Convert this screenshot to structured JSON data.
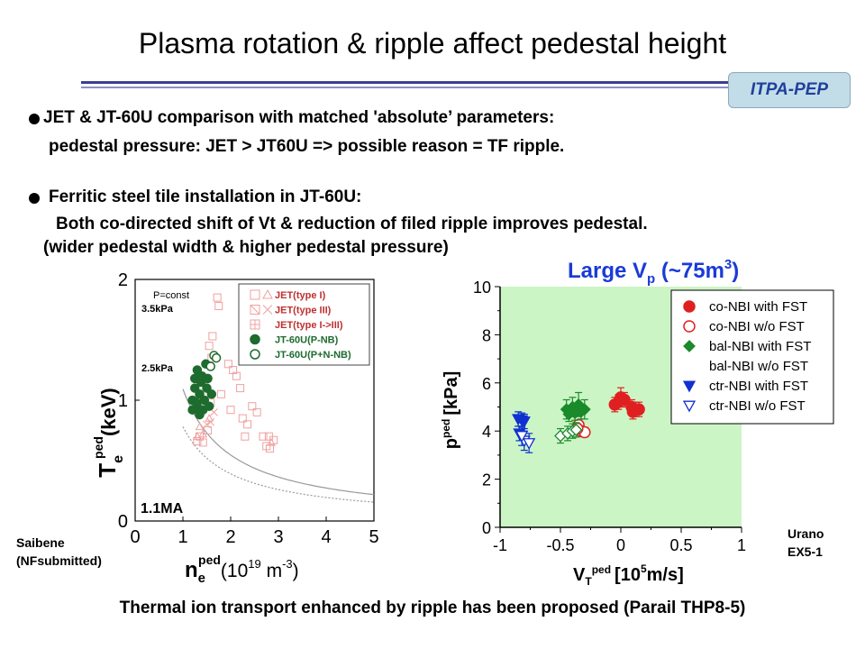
{
  "title": "Plasma rotation & ripple affect pedestal height",
  "badge": "ITPA-PEP",
  "bullets": [
    {
      "line1": "JET & JT-60U comparison with matched 'absolute’ parameters:",
      "line2": "pedestal pressure: JET > JT60U  => possible reason = TF ripple."
    },
    {
      "line1": "Ferritic steel tile installation in JT-60U:",
      "line2": "Both co-directed shift of Vt & reduction of filed ripple improves pedestal.",
      "line3": "(wider pedestal width & higher pedestal pressure)"
    }
  ],
  "footer": "Thermal ion transport enhanced by ripple has been proposed (Parail THP8-5)",
  "credits": {
    "left": "Saibene\n(NFsubmitted)",
    "right": "Urano\nEX5-1"
  },
  "colors": {
    "jet": "#f0a0a0",
    "jt60u": "#1e6b2e",
    "red": "#e02020",
    "blue": "#1030d0",
    "green": "#1a8a2a",
    "plot_bg": "#ccf5c6"
  },
  "chart_data": [
    {
      "type": "scatter",
      "xlabel": {
        "main": "n",
        "sub": "e",
        "sup": "ped",
        "rest": "(10",
        "exp": "19",
        "unit": " m",
        "unitexp": "-3",
        "close": ")"
      },
      "ylabel": {
        "main": "T",
        "sub": "e",
        "sup": "ped",
        "rest": "(keV)"
      },
      "xlim": [
        0,
        5
      ],
      "ylim": [
        0,
        2
      ],
      "x_ticks": [
        "0",
        "1",
        "2",
        "3",
        "4",
        "5"
      ],
      "y_ticks": [
        "0",
        "1",
        "2"
      ],
      "annotations": {
        "pconst": "P=const",
        "p35": "3.5kPa",
        "p25": "2.5kPa",
        "current": "1.1MA"
      },
      "isobars": [
        {
          "pressure_kpa": 3.5,
          "style": "solid"
        },
        {
          "pressure_kpa": 2.5,
          "style": "dotted"
        }
      ],
      "legend": [
        "JET(type I)",
        "JET(type III)",
        "JET(type I->III)",
        "JT-60U(P-NB)",
        "JT-60U(P+N-NB)"
      ],
      "series": [
        {
          "name": "JET(type I)",
          "marker": "square",
          "points": [
            [
              1.72,
              1.85
            ],
            [
              1.75,
              1.78
            ],
            [
              1.62,
              1.53
            ],
            [
              1.55,
              1.45
            ],
            [
              1.6,
              1.35
            ],
            [
              1.95,
              1.3
            ],
            [
              2.05,
              1.25
            ],
            [
              2.12,
              1.2
            ],
            [
              2.2,
              1.1
            ],
            [
              2.45,
              0.95
            ],
            [
              2.55,
              0.9
            ],
            [
              2.35,
              0.8
            ],
            [
              2.3,
              0.7
            ],
            [
              2.8,
              0.7
            ],
            [
              2.75,
              0.62
            ],
            [
              2.82,
              0.6
            ],
            [
              1.35,
              0.7
            ],
            [
              1.42,
              0.65
            ],
            [
              1.3,
              0.66
            ],
            [
              1.52,
              0.75
            ],
            [
              1.58,
              0.98
            ],
            [
              1.8,
              1.05
            ],
            [
              2.0,
              0.92
            ],
            [
              2.25,
              0.85
            ],
            [
              2.9,
              0.67
            ],
            [
              2.68,
              0.7
            ]
          ]
        },
        {
          "name": "JET(type III)",
          "marker": "triangle",
          "points": [
            [
              1.3,
              0.7
            ],
            [
              1.35,
              0.78
            ],
            [
              1.42,
              0.72
            ],
            [
              1.55,
              0.85
            ],
            [
              2.85,
              0.65
            ]
          ]
        },
        {
          "name": "JET(type I->III)",
          "marker": "x",
          "points": [
            [
              1.58,
              0.82
            ],
            [
              1.65,
              0.9
            ],
            [
              1.5,
              0.8
            ]
          ]
        },
        {
          "name": "JT-60U(P-NB)",
          "marker": "filled-circle",
          "points": [
            [
              1.2,
              1.0
            ],
            [
              1.25,
              1.1
            ],
            [
              1.3,
              0.95
            ],
            [
              1.35,
              1.05
            ],
            [
              1.4,
              1.2
            ],
            [
              1.45,
              1.0
            ],
            [
              1.5,
              1.1
            ],
            [
              1.55,
              0.95
            ],
            [
              1.3,
              1.25
            ],
            [
              1.2,
              0.92
            ],
            [
              1.42,
              0.92
            ],
            [
              1.6,
              1.05
            ],
            [
              1.48,
              1.3
            ],
            [
              1.38,
              1.15
            ],
            [
              1.28,
              0.98
            ],
            [
              1.52,
              1.18
            ],
            [
              1.35,
              0.88
            ],
            [
              1.25,
              1.18
            ]
          ]
        },
        {
          "name": "JT-60U(P+N-NB)",
          "marker": "open-circle",
          "points": [
            [
              1.65,
              1.37
            ],
            [
              1.7,
              1.35
            ],
            [
              1.58,
              1.28
            ]
          ]
        }
      ]
    },
    {
      "type": "scatter",
      "title": {
        "main": "Large V",
        "sub": "p",
        "rest": " (~75m",
        "sup": "3",
        "close": ")"
      },
      "xlabel": {
        "main": "V",
        "sub": "T",
        "sup": "ped",
        "rest": "[10",
        "exp": "5",
        "unit": "m/s]"
      },
      "ylabel": {
        "main": "p",
        "sup": "ped",
        "rest": "[kPa]"
      },
      "xlim": [
        -1,
        1
      ],
      "ylim": [
        0,
        10
      ],
      "x_ticks": [
        "-1",
        "-0.5",
        "0",
        "0.5",
        "1"
      ],
      "y_ticks": [
        "0",
        "2",
        "4",
        "6",
        "8",
        "10"
      ],
      "legend": [
        "co-NBI with FST",
        "co-NBI w/o FST",
        "bal-NBI with FST",
        "bal-NBI w/o FST",
        "ctr-NBI with FST",
        "ctr-NBI w/o FST"
      ],
      "series": [
        {
          "name": "co-NBI with FST",
          "marker": "filled-circle",
          "color": "#e02020",
          "points": [
            [
              -0.02,
              5.2,
              0.3
            ],
            [
              0.0,
              5.4,
              0.4
            ],
            [
              0.03,
              5.3,
              0.3
            ],
            [
              0.09,
              5.0,
              0.3
            ],
            [
              0.12,
              4.9,
              0.3
            ],
            [
              0.1,
              4.8,
              0.3
            ],
            [
              -0.05,
              5.1,
              0.3
            ],
            [
              0.15,
              4.9,
              0.3
            ]
          ]
        },
        {
          "name": "co-NBI w/o FST",
          "marker": "open-circle",
          "color": "#e02020",
          "points": [
            [
              -0.35,
              4.25,
              0.2
            ],
            [
              -0.33,
              4.0,
              0.2
            ],
            [
              -0.3,
              3.95,
              0.2
            ],
            [
              -0.36,
              4.1,
              0.2
            ]
          ]
        },
        {
          "name": "bal-NBI with FST",
          "marker": "filled-diamond",
          "color": "#1a8a2a",
          "points": [
            [
              -0.45,
              4.9,
              0.4
            ],
            [
              -0.4,
              5.0,
              0.4
            ],
            [
              -0.35,
              5.1,
              0.5
            ],
            [
              -0.3,
              4.9,
              0.4
            ],
            [
              -0.43,
              4.7,
              0.3
            ],
            [
              -0.38,
              4.75,
              0.3
            ],
            [
              -0.33,
              4.8,
              0.3
            ]
          ]
        },
        {
          "name": "bal-NBI w/o FST",
          "marker": "open-diamond",
          "color": "#1a8a2a",
          "points": [
            [
              -0.5,
              3.8,
              0.3
            ],
            [
              -0.44,
              3.9,
              0.3
            ],
            [
              -0.4,
              4.0,
              0.3
            ],
            [
              -0.37,
              4.05,
              0.3
            ]
          ]
        },
        {
          "name": "ctr-NBI with FST",
          "marker": "filled-triangle-down",
          "color": "#1030d0",
          "points": [
            [
              -0.85,
              4.5,
              0.3
            ],
            [
              -0.82,
              4.45,
              0.3
            ],
            [
              -0.8,
              4.4,
              0.3
            ],
            [
              -0.84,
              3.9,
              0.3
            ]
          ]
        },
        {
          "name": "ctr-NBI w/o FST",
          "marker": "open-triangle-down",
          "color": "#1030d0",
          "points": [
            [
              -0.8,
              3.6,
              0.4
            ],
            [
              -0.76,
              3.5,
              0.4
            ],
            [
              -0.82,
              3.8,
              0.4
            ]
          ]
        }
      ]
    }
  ]
}
